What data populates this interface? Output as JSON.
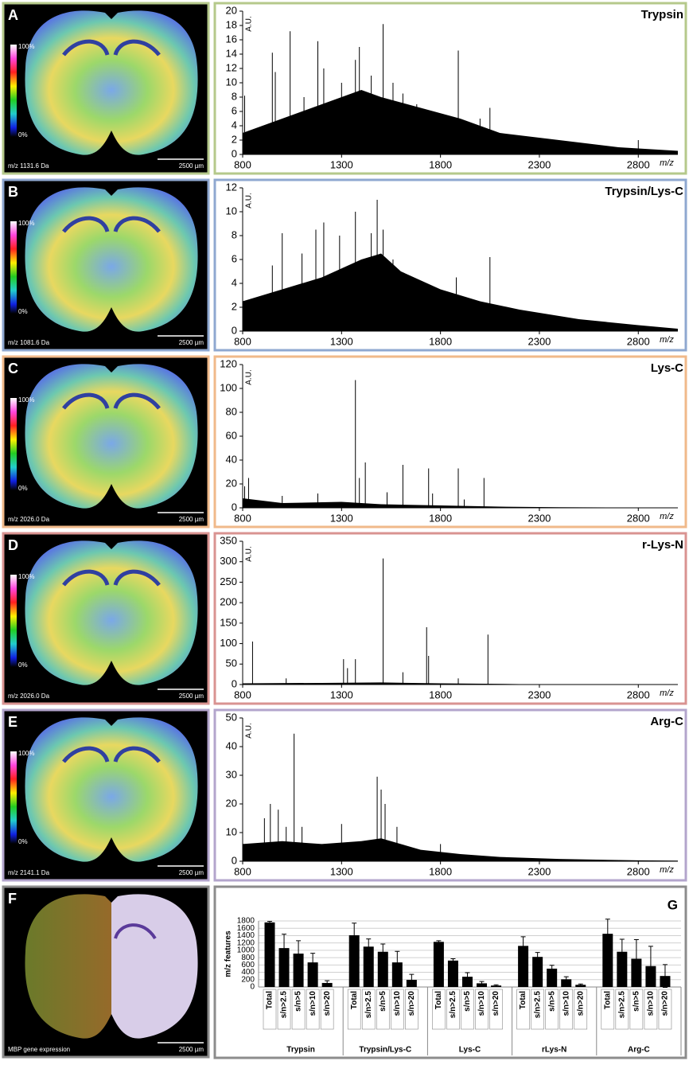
{
  "panels": [
    {
      "letter": "A",
      "image_label": "m/z 1131.6 Da",
      "scale": "2500 µm",
      "bar_top": "100%",
      "bar_bottom": "0%"
    },
    {
      "letter": "B",
      "image_label": "m/z 1081.6 Da",
      "scale": "2500 µm",
      "bar_top": "100%",
      "bar_bottom": "0%"
    },
    {
      "letter": "C",
      "image_label": "m/z 2026.0 Da",
      "scale": "2500 µm",
      "bar_top": "100%",
      "bar_bottom": "0%"
    },
    {
      "letter": "D",
      "image_label": "m/z 2026.0 Da",
      "scale": "2500 µm",
      "bar_top": "100%",
      "bar_bottom": "0%"
    },
    {
      "letter": "E",
      "image_label": "m/z 2141.1 Da",
      "scale": "2500 µm",
      "bar_top": "100%",
      "bar_bottom": "0%"
    },
    {
      "letter": "F",
      "image_label": "MBP gene expression",
      "scale": "2500 µm"
    }
  ],
  "chart_data": [
    {
      "type": "spectrum",
      "title": "Trypsin",
      "xlabel": "m/z",
      "ylabel": "A.U.",
      "color": "#000000",
      "frame_color": "#b5c98b",
      "xlim": [
        800,
        3000
      ],
      "xticks": [
        800,
        1300,
        1800,
        2300,
        2800
      ],
      "ylim": [
        0,
        20
      ],
      "yticks": [
        0,
        2,
        4,
        6,
        8,
        10,
        12,
        14,
        16,
        18,
        20
      ],
      "x": [
        810,
        950,
        965,
        1040,
        1110,
        1180,
        1210,
        1300,
        1370,
        1390,
        1450,
        1510,
        1560,
        1610,
        1680,
        1890,
        2000,
        2050,
        2800
      ],
      "values": [
        8.2,
        14.2,
        11.5,
        17.2,
        8,
        15.8,
        12,
        10,
        13.2,
        15,
        11,
        18.2,
        10,
        8.5,
        7,
        14.5,
        5,
        6.5,
        2
      ],
      "envelope": {
        "x": [
          800,
          1000,
          1200,
          1400,
          1500,
          1700,
          1900,
          2100,
          2400,
          2700,
          3000
        ],
        "values": [
          3,
          5,
          7,
          9,
          8,
          6.5,
          5,
          3,
          2,
          1,
          0.5
        ]
      }
    },
    {
      "type": "spectrum",
      "title": "Trypsin/Lys-C",
      "xlabel": "m/z",
      "ylabel": "A.U.",
      "color": "#000000",
      "frame_color": "#8fa8d0",
      "xlim": [
        800,
        3000
      ],
      "xticks": [
        800,
        1300,
        1800,
        2300,
        2800
      ],
      "ylim": [
        0,
        12
      ],
      "yticks": [
        0,
        2,
        4,
        6,
        8,
        10,
        12
      ],
      "x": [
        950,
        1000,
        1100,
        1170,
        1210,
        1290,
        1370,
        1450,
        1480,
        1510,
        1560,
        1880,
        2050
      ],
      "values": [
        5.5,
        8.2,
        6.5,
        8.5,
        9.1,
        8,
        10,
        8.2,
        11,
        8.5,
        6,
        4.5,
        6.2
      ],
      "envelope": {
        "x": [
          800,
          1000,
          1200,
          1400,
          1500,
          1600,
          1800,
          2000,
          2200,
          2500,
          2800,
          3000
        ],
        "values": [
          2.5,
          3.5,
          4.5,
          6,
          6.5,
          5,
          3.5,
          2.5,
          1.8,
          1,
          0.5,
          0.2
        ]
      }
    },
    {
      "type": "spectrum",
      "title": "Lys-C",
      "xlabel": "m/z",
      "ylabel": "A.U.",
      "color": "#000000",
      "frame_color": "#f0b98a",
      "xlim": [
        800,
        3000
      ],
      "xticks": [
        800,
        1300,
        1800,
        2300,
        2800
      ],
      "ylim": [
        0,
        120
      ],
      "yticks": [
        0,
        20,
        40,
        60,
        80,
        100,
        120
      ],
      "x": [
        810,
        830,
        1000,
        1180,
        1370,
        1390,
        1420,
        1530,
        1610,
        1740,
        1760,
        1890,
        1920,
        2020
      ],
      "values": [
        18,
        25,
        10,
        12,
        107,
        25,
        38,
        13,
        36,
        33,
        12,
        33,
        7,
        25
      ],
      "envelope": {
        "x": [
          800,
          1000,
          1300,
          1500,
          1800,
          2100,
          2400,
          3000
        ],
        "values": [
          8,
          4,
          5,
          3,
          2,
          1,
          0.5,
          0
        ]
      }
    },
    {
      "type": "spectrum",
      "title": "r-Lys-N",
      "xlabel": "m/z",
      "ylabel": "A.U.",
      "color": "#000000",
      "frame_color": "#d99391",
      "xlim": [
        800,
        3000
      ],
      "xticks": [
        800,
        1300,
        1800,
        2300,
        2800
      ],
      "ylim": [
        0,
        350
      ],
      "yticks": [
        0,
        50,
        100,
        150,
        200,
        250,
        300,
        350
      ],
      "x": [
        850,
        1020,
        1310,
        1330,
        1370,
        1510,
        1610,
        1730,
        1740,
        1890,
        2040
      ],
      "values": [
        105,
        15,
        62,
        40,
        62,
        308,
        30,
        140,
        70,
        15,
        122
      ],
      "envelope": {
        "x": [
          800,
          1200,
          1500,
          1800,
          2200,
          3000
        ],
        "values": [
          3,
          4,
          5,
          3,
          1,
          0
        ]
      }
    },
    {
      "type": "spectrum",
      "title": "Arg-C",
      "xlabel": "m/z",
      "ylabel": "A.U.",
      "color": "#000000",
      "frame_color": "#b3a5cc",
      "xlim": [
        800,
        3000
      ],
      "xticks": [
        800,
        1300,
        1800,
        2300,
        2800
      ],
      "ylim": [
        0,
        50
      ],
      "yticks": [
        0,
        10,
        20,
        30,
        40,
        50
      ],
      "x": [
        910,
        940,
        980,
        1020,
        1060,
        1100,
        1300,
        1480,
        1500,
        1520,
        1580,
        1800
      ],
      "values": [
        15,
        20,
        18,
        12,
        44.5,
        12,
        13,
        29.5,
        25,
        20,
        12,
        6
      ],
      "envelope": {
        "x": [
          800,
          1000,
          1200,
          1400,
          1500,
          1700,
          1900,
          2100,
          2400,
          2800,
          3000
        ],
        "values": [
          6,
          7,
          6,
          7,
          8,
          4,
          2.5,
          1.5,
          0.8,
          0.3,
          0.2
        ]
      }
    },
    {
      "type": "bar",
      "letter": "G",
      "ylabel": "m/z features",
      "color": "#000000",
      "frame_color": "#8c8c8c",
      "grid": true,
      "ylim": [
        0,
        1800
      ],
      "yticks": [
        0,
        200,
        400,
        600,
        800,
        1000,
        1200,
        1400,
        1600,
        1800
      ],
      "categories": [
        "Total",
        "s/n>2.5",
        "s/n>5",
        "s/n>10",
        "s/n>20"
      ],
      "series": [
        {
          "name": "Trypsin",
          "values": [
            1760,
            1060,
            910,
            670,
            110
          ],
          "errors": [
            30,
            380,
            350,
            250,
            60
          ]
        },
        {
          "name": "Trypsin/Lys-C",
          "values": [
            1410,
            1100,
            960,
            670,
            195
          ],
          "errors": [
            330,
            210,
            210,
            300,
            150
          ]
        },
        {
          "name": "Lys-C",
          "values": [
            1230,
            720,
            280,
            100,
            40
          ],
          "errors": [
            30,
            50,
            110,
            50,
            20
          ]
        },
        {
          "name": "rLys-N",
          "values": [
            1120,
            820,
            500,
            210,
            60
          ],
          "errors": [
            250,
            120,
            90,
            70,
            20
          ]
        },
        {
          "name": "Arg-C",
          "values": [
            1450,
            960,
            770,
            570,
            300
          ],
          "errors": [
            400,
            340,
            520,
            540,
            310
          ]
        }
      ]
    }
  ]
}
